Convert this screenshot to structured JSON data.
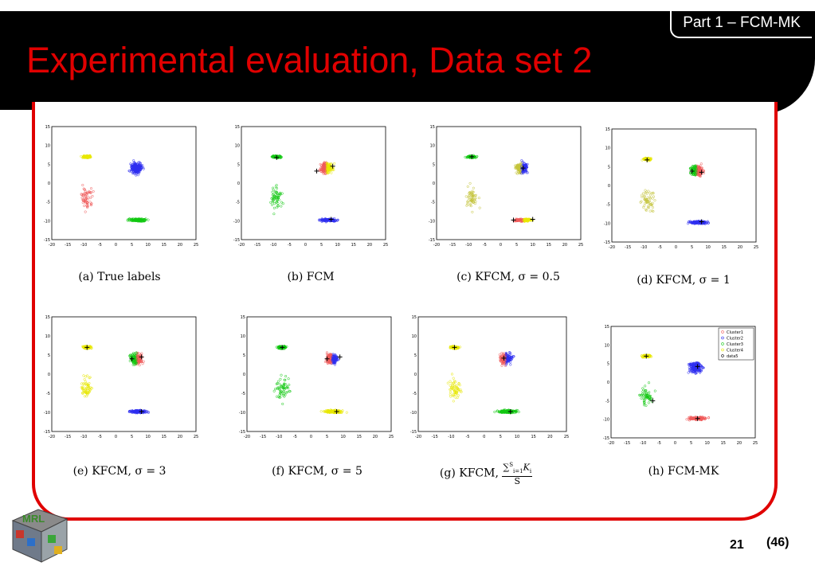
{
  "header": {
    "part_label": "Part 1 – FCM-MK",
    "title": "Experimental evaluation, Data set 2"
  },
  "colors": {
    "title_red": "#e00000",
    "cluster_red": "#f05a5a",
    "cluster_blue": "#2d2df0",
    "cluster_green": "#10c810",
    "cluster_yellow": "#e8e800",
    "cluster_olive": "#c4c43a"
  },
  "logo": {
    "text": "MRL",
    "icon": "mrl-cube-icon"
  },
  "panels": [
    {
      "caption": "(a) True labels",
      "groups": [
        "yellow",
        "blue",
        "red",
        "green"
      ],
      "centers": []
    },
    {
      "caption": "(b) FCM",
      "groups": [
        "green",
        "yellow",
        "green",
        "blue"
      ],
      "split": [
        "red",
        "yellow"
      ],
      "centers": [
        [
          -9,
          6.8
        ],
        [
          3.5,
          3.2
        ],
        [
          8.5,
          4.5
        ],
        [
          8,
          -9.6
        ]
      ]
    },
    {
      "caption": "(c) KFCM, σ = 0.5",
      "groups": [
        "green",
        "blue",
        "olive",
        "mixed-ry"
      ],
      "split": [
        "olive",
        "blue"
      ],
      "centers": [
        [
          -9,
          7
        ],
        [
          7,
          4
        ],
        [
          4,
          -9.8
        ],
        [
          10,
          -9.6
        ]
      ]
    },
    {
      "caption": "(d) KFCM, σ = 1",
      "groups": [
        "yellow",
        "red",
        "olive",
        "blue"
      ],
      "split": [
        "green",
        "red"
      ],
      "centers": [
        [
          -9,
          6.8
        ],
        [
          5,
          3.8
        ],
        [
          8,
          3.5
        ],
        [
          8,
          -9.6
        ]
      ]
    },
    {
      "caption": "(e) KFCM, σ = 3",
      "groups": [
        "yellow",
        "red",
        "yellow",
        "blue"
      ],
      "split": [
        "green",
        "red"
      ],
      "centers": [
        [
          -9,
          7
        ],
        [
          5,
          4
        ],
        [
          8,
          4.5
        ],
        [
          8,
          -9.8
        ]
      ]
    },
    {
      "caption": "(f) KFCM, σ = 5",
      "groups": [
        "green",
        "blue",
        "green",
        "yellow"
      ],
      "split": [
        "red",
        "blue"
      ],
      "centers": [
        [
          -9,
          7
        ],
        [
          5,
          4
        ],
        [
          9,
          4.5
        ],
        [
          8,
          -9.8
        ]
      ]
    },
    {
      "caption_prefix": "(g) KFCM, ",
      "caption_num": "∑",
      "caption_sup": "S",
      "caption_sub": "i=1",
      "caption_k": "K",
      "caption_ki": "i",
      "caption_den": "S",
      "groups": [
        "yellow",
        "blue",
        "yellow",
        "green"
      ],
      "split": [
        "red",
        "blue"
      ],
      "centers": [
        [
          -9,
          7
        ],
        [
          6,
          4.2
        ],
        [
          8,
          -9.8
        ]
      ]
    },
    {
      "caption": "(h) FCM-MK",
      "groups": [
        "yellow",
        "blue",
        "green",
        "red"
      ],
      "centers": [
        [
          -9,
          7
        ],
        [
          7,
          4.2
        ],
        [
          -7,
          -5
        ],
        [
          7,
          -9.8
        ]
      ],
      "legend": [
        "Cluster1",
        "Cluster2",
        "Cluster3",
        "Cluster4",
        "data5"
      ]
    }
  ],
  "axes": {
    "x_ticks": [
      "-20",
      "-15",
      "-10",
      "-5",
      "0",
      "5",
      "10",
      "15",
      "20",
      "25"
    ],
    "y_ticks": [
      "15",
      "10",
      "5",
      "0",
      "-5",
      "-10",
      "-15"
    ]
  },
  "footer": {
    "page": "21",
    "total": "(46)"
  }
}
